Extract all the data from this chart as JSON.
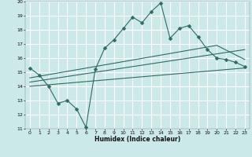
{
  "xlabel": "Humidex (Indice chaleur)",
  "xlim": [
    -0.5,
    23.5
  ],
  "ylim": [
    11,
    20
  ],
  "yticks": [
    11,
    12,
    13,
    14,
    15,
    16,
    17,
    18,
    19,
    20
  ],
  "xticks": [
    0,
    1,
    2,
    3,
    4,
    5,
    6,
    7,
    8,
    9,
    10,
    11,
    12,
    13,
    14,
    15,
    16,
    17,
    18,
    19,
    20,
    21,
    22,
    23
  ],
  "bg_color": "#cce9e9",
  "grid_color": "#ffffff",
  "line_color": "#2e6b60",
  "line1_x": [
    0,
    1,
    2,
    3,
    4,
    5,
    6,
    7,
    8,
    9,
    10,
    11,
    12,
    13,
    14,
    15,
    16,
    17,
    18,
    19,
    20,
    21,
    22,
    23
  ],
  "line1_y": [
    15.3,
    14.8,
    14.0,
    12.8,
    13.0,
    12.4,
    11.1,
    15.2,
    16.7,
    17.3,
    18.1,
    18.9,
    18.5,
    19.3,
    19.9,
    17.4,
    18.1,
    18.3,
    17.5,
    16.6,
    16.0,
    15.9,
    15.7,
    15.4
  ],
  "line2_x": [
    0,
    23
  ],
  "line2_y": [
    14.0,
    15.3
  ],
  "line3_x": [
    0,
    23
  ],
  "line3_y": [
    14.3,
    16.6
  ],
  "line4_x": [
    0,
    20,
    23
  ],
  "line4_y": [
    14.6,
    16.9,
    15.9
  ]
}
